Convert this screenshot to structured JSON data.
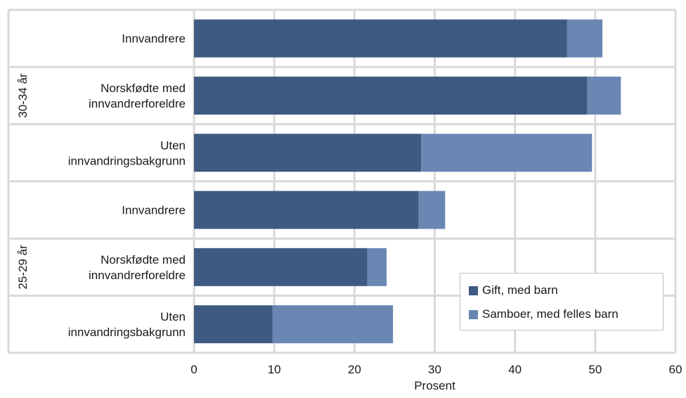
{
  "chart_data": {
    "type": "bar",
    "orientation": "horizontal",
    "stacked": true,
    "xlabel": "Prosent",
    "xlim": [
      0,
      60
    ],
    "xticks": [
      0,
      10,
      20,
      30,
      40,
      50,
      60
    ],
    "grid": true,
    "legend_position": "bottom-right",
    "groups": [
      {
        "label": "30-34 år",
        "categories": [
          "Innvandrere",
          "Norskfødte med innvandrerforeldre",
          "Uten innvandringsbakgrunn"
        ],
        "category_lines": [
          [
            "Innvandrere"
          ],
          [
            "Norskfødte med",
            "innvandrerforeldre"
          ],
          [
            "Uten",
            "innvandringsbakgrunn"
          ]
        ]
      },
      {
        "label": "25-29 år",
        "categories": [
          "Innvandrere",
          "Norskfødte med innvandrerforeldre",
          "Uten innvandringsbakgrunn"
        ],
        "category_lines": [
          [
            "Innvandrere"
          ],
          [
            "Norskfødte med",
            "innvandrerforeldre"
          ],
          [
            "Uten",
            "innvandringsbakgrunn"
          ]
        ]
      }
    ],
    "series": [
      {
        "name": "Gift, med barn",
        "color": "#3f5a82",
        "values": [
          46.5,
          49,
          28.3,
          28,
          21.6,
          9.8
        ]
      },
      {
        "name": "Samboer, med felles barn",
        "color": "#6a86b3",
        "values": [
          4.4,
          4.2,
          21.3,
          3.3,
          2.4,
          15
        ]
      }
    ]
  }
}
